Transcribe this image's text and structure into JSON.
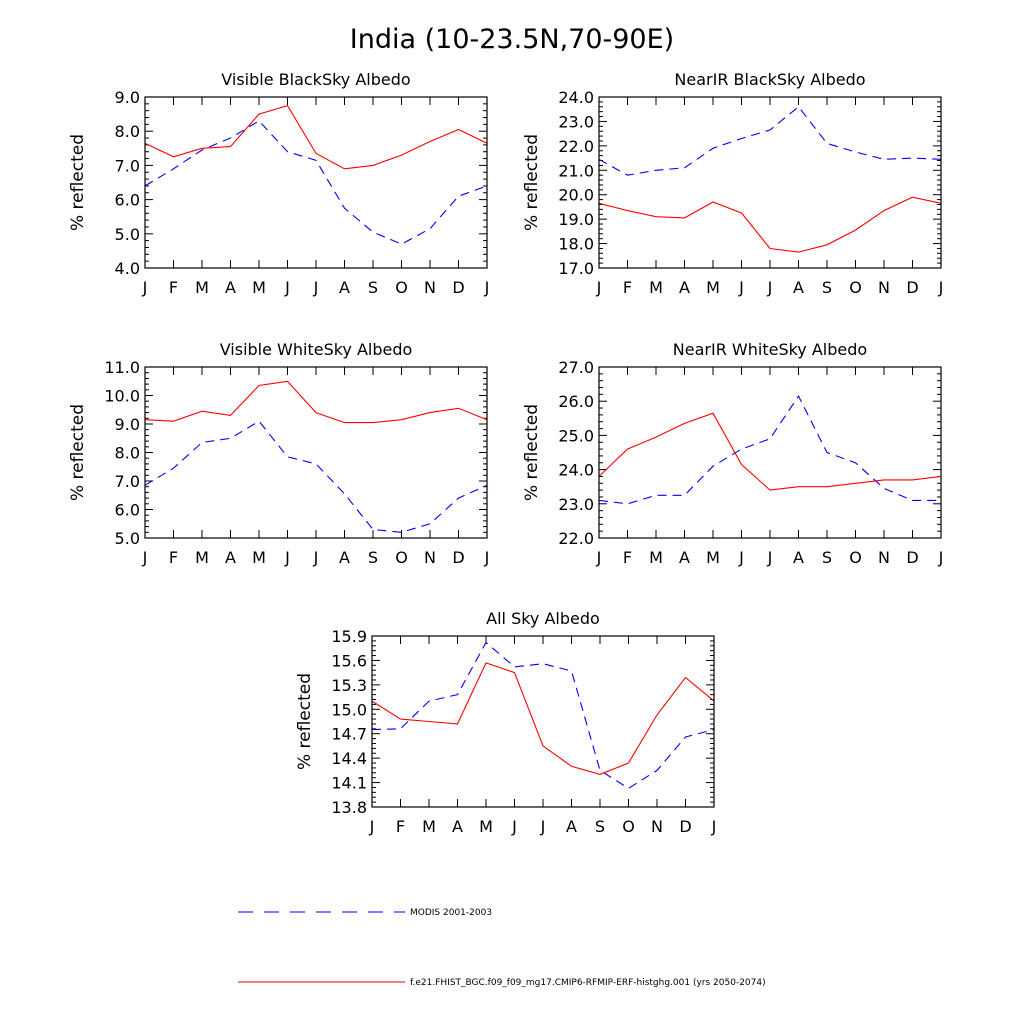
{
  "main_title": "India (10-23.5N,70-90E)",
  "chart_data": [
    {
      "type": "line",
      "title": "Visible BlackSky Albedo",
      "ylabel": "% reflected",
      "xlabel": "",
      "categories": [
        "J",
        "F",
        "M",
        "A",
        "M",
        "J",
        "J",
        "A",
        "S",
        "O",
        "N",
        "D",
        "J"
      ],
      "ylim": [
        4.0,
        9.0
      ],
      "yticks": [
        4.0,
        5.0,
        6.0,
        7.0,
        8.0,
        9.0
      ],
      "series": [
        {
          "name": "MODIS 2001-2003",
          "color": "#0000ff",
          "dash": true,
          "values": [
            6.4,
            6.9,
            7.45,
            7.8,
            8.3,
            7.4,
            7.15,
            5.75,
            5.05,
            4.7,
            5.15,
            6.1,
            6.4
          ]
        },
        {
          "name": "f.e21.FHIST_BGC.f09_f09_mg17.CMIP6-RFMIP-ERF-histghg.001 (yrs 2050-2074)",
          "color": "#ff0000",
          "dash": false,
          "values": [
            7.65,
            7.25,
            7.5,
            7.55,
            8.5,
            8.75,
            7.35,
            6.9,
            7.0,
            7.3,
            7.7,
            8.05,
            7.65
          ]
        }
      ]
    },
    {
      "type": "line",
      "title": "NearIR BlackSky Albedo",
      "ylabel": "% reflected",
      "xlabel": "",
      "categories": [
        "J",
        "F",
        "M",
        "A",
        "M",
        "J",
        "J",
        "A",
        "S",
        "O",
        "N",
        "D",
        "J"
      ],
      "ylim": [
        17.0,
        24.0
      ],
      "yticks": [
        17.0,
        18.0,
        19.0,
        20.0,
        21.0,
        22.0,
        23.0,
        24.0
      ],
      "series": [
        {
          "name": "MODIS 2001-2003",
          "color": "#0000ff",
          "dash": true,
          "values": [
            21.45,
            20.8,
            21.0,
            21.1,
            21.9,
            22.3,
            22.65,
            23.6,
            22.1,
            21.75,
            21.45,
            21.5,
            21.45
          ]
        },
        {
          "name": "f.e21.FHIST_BGC.f09_f09_mg17.CMIP6-RFMIP-ERF-histghg.001 (yrs 2050-2074)",
          "color": "#ff0000",
          "dash": false,
          "values": [
            19.65,
            19.35,
            19.1,
            19.05,
            19.7,
            19.25,
            17.8,
            17.65,
            17.95,
            18.55,
            19.35,
            19.9,
            19.65
          ]
        }
      ]
    },
    {
      "type": "line",
      "title": "Visible WhiteSky Albedo",
      "ylabel": "% reflected",
      "xlabel": "",
      "categories": [
        "J",
        "F",
        "M",
        "A",
        "M",
        "J",
        "J",
        "A",
        "S",
        "O",
        "N",
        "D",
        "J"
      ],
      "ylim": [
        5.0,
        11.0
      ],
      "yticks": [
        5.0,
        6.0,
        7.0,
        8.0,
        9.0,
        10.0,
        11.0
      ],
      "series": [
        {
          "name": "MODIS 2001-2003",
          "color": "#0000ff",
          "dash": true,
          "values": [
            6.85,
            7.45,
            8.35,
            8.5,
            9.1,
            7.85,
            7.6,
            6.55,
            5.3,
            5.2,
            5.5,
            6.4,
            6.85
          ]
        },
        {
          "name": "f.e21.FHIST_BGC.f09_f09_mg17.CMIP6-RFMIP-ERF-histghg.001 (yrs 2050-2074)",
          "color": "#ff0000",
          "dash": false,
          "values": [
            9.15,
            9.1,
            9.45,
            9.3,
            10.35,
            10.5,
            9.4,
            9.05,
            9.05,
            9.15,
            9.4,
            9.55,
            9.15
          ]
        }
      ]
    },
    {
      "type": "line",
      "title": "NearIR WhiteSky Albedo",
      "ylabel": "% reflected",
      "xlabel": "",
      "categories": [
        "J",
        "F",
        "M",
        "A",
        "M",
        "J",
        "J",
        "A",
        "S",
        "O",
        "N",
        "D",
        "J"
      ],
      "ylim": [
        22.0,
        27.0
      ],
      "yticks": [
        22.0,
        23.0,
        24.0,
        25.0,
        26.0,
        27.0
      ],
      "series": [
        {
          "name": "MODIS 2001-2003",
          "color": "#0000ff",
          "dash": true,
          "values": [
            23.1,
            23.0,
            23.25,
            23.25,
            24.1,
            24.6,
            24.9,
            26.15,
            24.5,
            24.2,
            23.45,
            23.1,
            23.1
          ]
        },
        {
          "name": "f.e21.FHIST_BGC.f09_f09_mg17.CMIP6-RFMIP-ERF-histghg.001 (yrs 2050-2074)",
          "color": "#ff0000",
          "dash": false,
          "values": [
            23.8,
            24.6,
            24.95,
            25.35,
            25.65,
            24.15,
            23.4,
            23.5,
            23.5,
            23.6,
            23.7,
            23.7,
            23.8
          ]
        }
      ]
    },
    {
      "type": "line",
      "title": "All Sky Albedo",
      "ylabel": "% reflected",
      "xlabel": "",
      "categories": [
        "J",
        "F",
        "M",
        "A",
        "M",
        "J",
        "J",
        "A",
        "S",
        "O",
        "N",
        "D",
        "J"
      ],
      "ylim": [
        13.8,
        15.9
      ],
      "yticks": [
        13.8,
        14.1,
        14.4,
        14.7,
        15.0,
        15.3,
        15.6,
        15.9
      ],
      "series": [
        {
          "name": "MODIS 2001-2003",
          "color": "#0000ff",
          "dash": true,
          "values": [
            14.75,
            14.76,
            15.1,
            15.18,
            15.82,
            15.52,
            15.56,
            15.47,
            14.25,
            14.03,
            14.25,
            14.66,
            14.75
          ]
        },
        {
          "name": "f.e21.FHIST_BGC.f09_f09_mg17.CMIP6-RFMIP-ERF-histghg.001 (yrs 2050-2074)",
          "color": "#ff0000",
          "dash": false,
          "values": [
            15.1,
            14.88,
            14.85,
            14.82,
            15.57,
            15.45,
            14.55,
            14.3,
            14.2,
            14.34,
            14.93,
            15.39,
            15.1
          ]
        }
      ]
    }
  ],
  "legend": [
    {
      "label": "MODIS 2001-2003",
      "color": "#0000ff",
      "dash": true
    },
    {
      "label": "f.e21.FHIST_BGC.f09_f09_mg17.CMIP6-RFMIP-ERF-histghg.001 (yrs 2050-2074)",
      "color": "#ff0000",
      "dash": false
    }
  ]
}
